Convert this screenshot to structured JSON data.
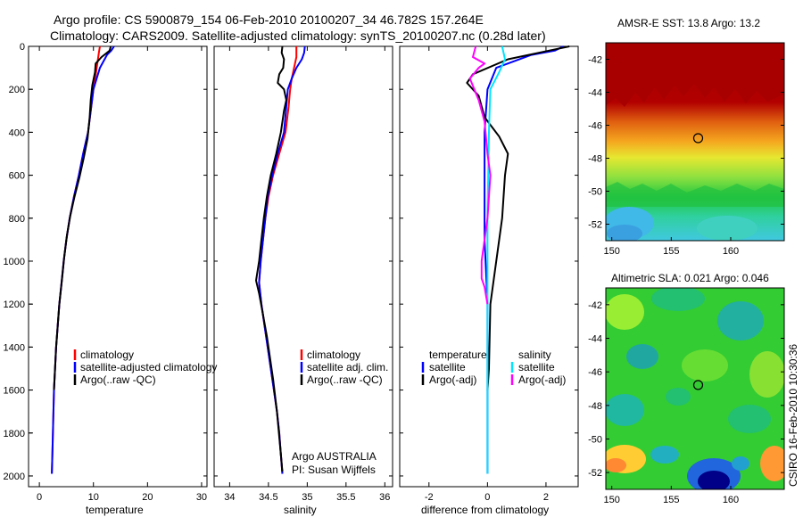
{
  "header": {
    "title_line1": "Argo profile: CS 5900879_154 06-Feb-2010 20100207_34 46.782S 157.264E",
    "title_line2": "Climatology: CARS2009. Satellite-adjusted climatology: synTS_20100207.nc (0.28d later)"
  },
  "side_label": "CSIRO 16-Feb-2010 10:30:36",
  "colors": {
    "climatology": "#ff0000",
    "satellite": "#0000ff",
    "argo": "#000000",
    "cyan": "#00e5ff",
    "magenta": "#ff00ff"
  },
  "chart_data": [
    {
      "type": "line",
      "panel": "temperature",
      "xlabel": "temperature",
      "ylabel": "",
      "xlim": [
        -2,
        31
      ],
      "ylim": [
        2050,
        0
      ],
      "xticks": [
        "0",
        "10",
        "20",
        "30"
      ],
      "xtick_values": [
        0,
        10,
        20,
        30
      ],
      "yticks": [
        "0",
        "200",
        "400",
        "600",
        "800",
        "1000",
        "1200",
        "1400",
        "1600",
        "1800",
        "2000"
      ],
      "ytick_values": [
        0,
        200,
        400,
        600,
        800,
        1000,
        1200,
        1400,
        1600,
        1800,
        2000
      ],
      "legend": [
        "climatology",
        "satellite-adjusted climatology",
        "Argo(..raw -QC)"
      ],
      "series": [
        {
          "name": "climatology",
          "color": "#ff0000",
          "points": [
            [
              11.2,
              0
            ],
            [
              11.0,
              30
            ],
            [
              10.6,
              100
            ],
            [
              10.0,
              200
            ],
            [
              9.6,
              280
            ],
            [
              9.0,
              400
            ],
            [
              8.1,
              500
            ],
            [
              7.3,
              600
            ],
            [
              6.4,
              700
            ],
            [
              5.6,
              800
            ],
            [
              5.0,
              900
            ],
            [
              4.5,
              1000
            ],
            [
              4.1,
              1100
            ],
            [
              3.7,
              1200
            ],
            [
              3.4,
              1300
            ],
            [
              3.1,
              1400
            ],
            [
              2.9,
              1500
            ],
            [
              2.7,
              1600
            ],
            [
              2.6,
              1700
            ],
            [
              2.5,
              1800
            ],
            [
              2.4,
              1900
            ],
            [
              2.3,
              1990
            ]
          ]
        },
        {
          "name": "satellite-adjusted climatology",
          "color": "#0000ff",
          "points": [
            [
              13.8,
              0
            ],
            [
              13.3,
              20
            ],
            [
              12.5,
              40
            ],
            [
              11.2,
              100
            ],
            [
              10.0,
              200
            ],
            [
              9.6,
              280
            ],
            [
              9.0,
              400
            ],
            [
              8.1,
              500
            ],
            [
              7.3,
              600
            ],
            [
              6.4,
              700
            ],
            [
              5.6,
              800
            ],
            [
              5.0,
              900
            ],
            [
              4.5,
              1000
            ],
            [
              4.1,
              1100
            ],
            [
              3.7,
              1200
            ],
            [
              3.4,
              1300
            ],
            [
              3.1,
              1400
            ],
            [
              2.9,
              1500
            ],
            [
              2.7,
              1600
            ],
            [
              2.6,
              1700
            ],
            [
              2.5,
              1800
            ],
            [
              2.4,
              1900
            ],
            [
              2.3,
              1990
            ]
          ]
        },
        {
          "name": "Argo(..raw -QC)",
          "color": "#000000",
          "points": [
            [
              13.2,
              0
            ],
            [
              13.0,
              20
            ],
            [
              11.5,
              50
            ],
            [
              10.4,
              80
            ],
            [
              10.3,
              120
            ],
            [
              9.8,
              180
            ],
            [
              9.5,
              250
            ],
            [
              9.3,
              330
            ],
            [
              8.9,
              430
            ],
            [
              8.2,
              520
            ],
            [
              7.4,
              610
            ],
            [
              6.5,
              700
            ],
            [
              5.7,
              790
            ],
            [
              5.1,
              880
            ],
            [
              4.6,
              980
            ],
            [
              4.2,
              1080
            ],
            [
              3.7,
              1200
            ],
            [
              3.4,
              1300
            ],
            [
              3.1,
              1400
            ],
            [
              2.9,
              1500
            ],
            [
              2.7,
              1600
            ]
          ]
        }
      ]
    },
    {
      "type": "line",
      "panel": "salinity",
      "xlabel": "salinity",
      "xlim": [
        33.8,
        36.1
      ],
      "ylim": [
        2050,
        0
      ],
      "xticks": [
        "34",
        "34.5",
        "35",
        "35.5",
        "36"
      ],
      "xtick_values": [
        34,
        34.5,
        35,
        35.5,
        36
      ],
      "legend": [
        "climatology",
        "satellite adj. clim.",
        "Argo(..raw -QC)"
      ],
      "annotation_line1": "Argo AUSTRALIA",
      "annotation_line2": "PI: Susan Wijffels",
      "series": [
        {
          "name": "climatology",
          "color": "#ff0000",
          "points": [
            [
              34.86,
              0
            ],
            [
              34.86,
              50
            ],
            [
              34.83,
              100
            ],
            [
              34.8,
              150
            ],
            [
              34.78,
              200
            ],
            [
              34.76,
              280
            ],
            [
              34.72,
              400
            ],
            [
              34.64,
              500
            ],
            [
              34.56,
              600
            ],
            [
              34.5,
              700
            ],
            [
              34.46,
              800
            ],
            [
              34.43,
              900
            ],
            [
              34.4,
              1000
            ],
            [
              34.38,
              1100
            ],
            [
              34.41,
              1200
            ],
            [
              34.45,
              1300
            ],
            [
              34.49,
              1400
            ],
            [
              34.53,
              1500
            ],
            [
              34.57,
              1600
            ],
            [
              34.61,
              1700
            ],
            [
              34.64,
              1800
            ],
            [
              34.66,
              1900
            ],
            [
              34.68,
              1990
            ]
          ]
        },
        {
          "name": "satellite adj. clim.",
          "color": "#0000ff",
          "points": [
            [
              34.97,
              0
            ],
            [
              34.96,
              30
            ],
            [
              34.93,
              60
            ],
            [
              34.86,
              100
            ],
            [
              34.8,
              150
            ],
            [
              34.75,
              200
            ],
            [
              34.73,
              280
            ],
            [
              34.7,
              400
            ],
            [
              34.62,
              500
            ],
            [
              34.55,
              600
            ],
            [
              34.49,
              700
            ],
            [
              34.46,
              800
            ],
            [
              34.43,
              900
            ],
            [
              34.4,
              1000
            ],
            [
              34.38,
              1100
            ],
            [
              34.41,
              1200
            ],
            [
              34.45,
              1300
            ],
            [
              34.49,
              1400
            ],
            [
              34.53,
              1500
            ],
            [
              34.57,
              1600
            ],
            [
              34.61,
              1700
            ],
            [
              34.64,
              1800
            ],
            [
              34.66,
              1900
            ],
            [
              34.68,
              1990
            ]
          ]
        },
        {
          "name": "Argo(..raw -QC)",
          "color": "#000000",
          "points": [
            [
              34.68,
              0
            ],
            [
              34.67,
              30
            ],
            [
              34.7,
              60
            ],
            [
              34.69,
              100
            ],
            [
              34.64,
              130
            ],
            [
              34.62,
              170
            ],
            [
              34.7,
              200
            ],
            [
              34.73,
              250
            ],
            [
              34.7,
              300
            ],
            [
              34.66,
              400
            ],
            [
              34.6,
              500
            ],
            [
              34.53,
              600
            ],
            [
              34.48,
              700
            ],
            [
              34.44,
              800
            ],
            [
              34.41,
              900
            ],
            [
              34.38,
              1000
            ],
            [
              34.34,
              1090
            ],
            [
              34.38,
              1150
            ],
            [
              34.43,
              1250
            ],
            [
              34.48,
              1350
            ],
            [
              34.52,
              1450
            ],
            [
              34.56,
              1550
            ],
            [
              34.61,
              1700
            ],
            [
              34.66,
              1900
            ],
            [
              34.68,
              1980
            ]
          ]
        }
      ]
    },
    {
      "type": "line",
      "panel": "difference",
      "xlabel": "difference from climatology",
      "xlim": [
        -3.0,
        3.1
      ],
      "ylim": [
        2050,
        0
      ],
      "xticks": [
        "-2",
        "0",
        "2"
      ],
      "xtick_values": [
        -2,
        0,
        2
      ],
      "legend_left_header": "temperature",
      "legend_right_header": "salinity",
      "legend_left": [
        "satellite",
        "Argo(-adj)"
      ],
      "legend_right": [
        "satellite",
        "Argo(-adj)"
      ],
      "series": [
        {
          "name": "temperature satellite",
          "color": "#0000ff",
          "points": [
            [
              2.6,
              0
            ],
            [
              2.3,
              20
            ],
            [
              1.5,
              40
            ],
            [
              0.3,
              100
            ],
            [
              0.0,
              200
            ],
            [
              -0.1,
              400
            ],
            [
              -0.1,
              600
            ],
            [
              -0.1,
              900
            ],
            [
              0.0,
              1200
            ],
            [
              0.0,
              1500
            ],
            [
              0.0,
              1990
            ]
          ]
        },
        {
          "name": "temperature Argo(-adj)",
          "color": "#000000",
          "points": [
            [
              2.8,
              0
            ],
            [
              2.1,
              20
            ],
            [
              0.7,
              60
            ],
            [
              -0.5,
              130
            ],
            [
              -0.7,
              170
            ],
            [
              -0.3,
              230
            ],
            [
              -0.1,
              330
            ],
            [
              0.4,
              420
            ],
            [
              0.7,
              500
            ],
            [
              0.6,
              600
            ],
            [
              0.5,
              800
            ],
            [
              0.3,
              1000
            ],
            [
              0.1,
              1200
            ],
            [
              0.05,
              1500
            ],
            [
              0.0,
              1600
            ]
          ]
        },
        {
          "name": "salinity satellite",
          "color": "#00e5ff",
          "points": [
            [
              0.5,
              0
            ],
            [
              0.6,
              60
            ],
            [
              0.4,
              120
            ],
            [
              0.1,
              200
            ],
            [
              0.05,
              400
            ],
            [
              0.0,
              800
            ],
            [
              0.0,
              1200
            ],
            [
              0.0,
              1990
            ]
          ]
        },
        {
          "name": "salinity Argo(-adj)",
          "color": "#ff00ff",
          "points": [
            [
              -0.4,
              0
            ],
            [
              -0.5,
              50
            ],
            [
              -0.1,
              80
            ],
            [
              -0.3,
              100
            ],
            [
              -0.6,
              150
            ],
            [
              -0.3,
              250
            ],
            [
              -0.1,
              350
            ],
            [
              0.0,
              500
            ],
            [
              0.1,
              600
            ],
            [
              0.0,
              800
            ],
            [
              -0.1,
              900
            ],
            [
              -0.2,
              1000
            ],
            [
              -0.2,
              1080
            ],
            [
              -0.1,
              1120
            ],
            [
              0.0,
              1200
            ]
          ]
        }
      ]
    },
    {
      "type": "heatmap",
      "panel": "sst_map",
      "title": "AMSR-E SST: 13.8 Argo: 13.2",
      "xlim": [
        149.5,
        164.5
      ],
      "ylim": [
        -53,
        -41
      ],
      "xticks": [
        "150",
        "155",
        "160"
      ],
      "xtick_values": [
        150,
        155,
        160
      ],
      "yticks": [
        "-42",
        "-44",
        "-46",
        "-48",
        "-50",
        "-52"
      ],
      "ytick_values": [
        -42,
        -44,
        -46,
        -48,
        -50,
        -52
      ],
      "marker": {
        "lon": 157.264,
        "lat": -46.782
      }
    },
    {
      "type": "heatmap",
      "panel": "sla_map",
      "title": "Altimetric SLA: 0.021 Argo: 0.046",
      "xlim": [
        149.5,
        164.5
      ],
      "ylim": [
        -53,
        -41
      ],
      "xticks": [
        "150",
        "155",
        "160"
      ],
      "xtick_values": [
        150,
        155,
        160
      ],
      "yticks": [
        "-42",
        "-44",
        "-46",
        "-48",
        "-50",
        "-52"
      ],
      "ytick_values": [
        -42,
        -44,
        -46,
        -48,
        -50,
        -52
      ],
      "marker": {
        "lon": 157.264,
        "lat": -46.782
      }
    }
  ]
}
